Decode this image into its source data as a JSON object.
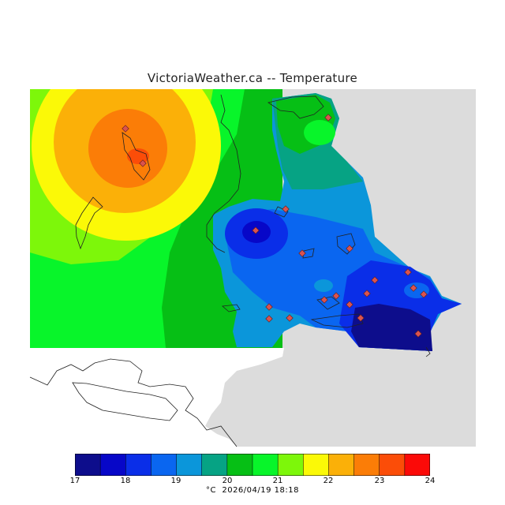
{
  "title": "VictoriaWeather.ca -- Temperature",
  "legend": {
    "colors": [
      "#0d0d8c",
      "#0707c8",
      "#0a2ee8",
      "#0a66f0",
      "#0b96da",
      "#06a384",
      "#06bf15",
      "#08f52a",
      "#7df70a",
      "#fbf907",
      "#fbb008",
      "#fb7d07",
      "#fb4d08",
      "#fb0a08"
    ],
    "ticks": [
      "17",
      "18",
      "19",
      "20",
      "21",
      "22",
      "23",
      "24"
    ]
  },
  "caption": {
    "unit": "°C",
    "timestamp": "2026/04/19 18:18"
  },
  "map": {
    "land_color": "#dcdcdc",
    "water_color": "#ffffff",
    "station_color": "#d9534f"
  }
}
